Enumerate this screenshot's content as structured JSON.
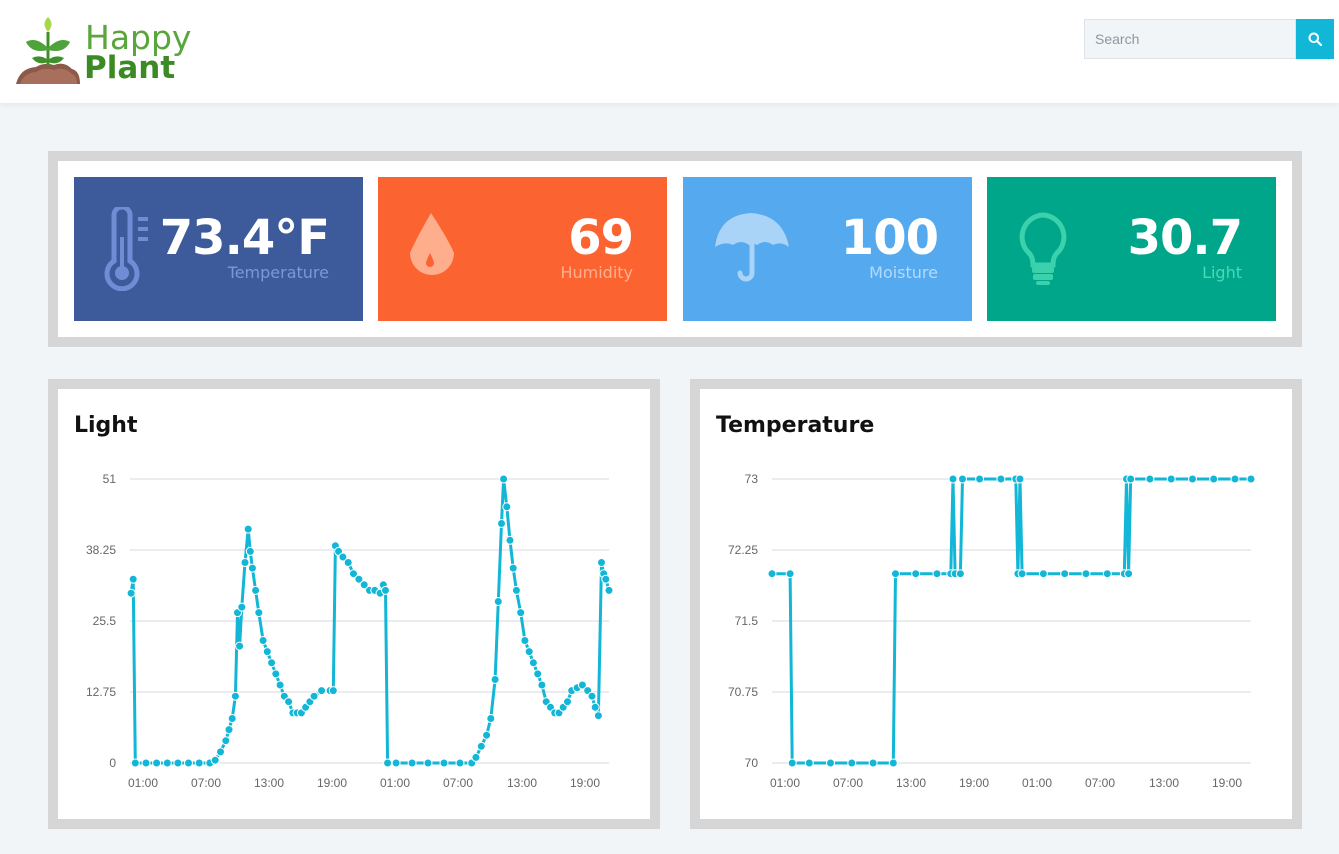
{
  "header": {
    "logo": {
      "line1": "Happy",
      "line2": "Plant"
    },
    "search": {
      "placeholder": "Search"
    }
  },
  "stats": [
    {
      "name": "temperature",
      "value": "73.4°F",
      "label": "Temperature",
      "color": "#3d5a9a",
      "label_color": "#7d97d6",
      "icon": "thermometer-icon"
    },
    {
      "name": "humidity",
      "value": "69",
      "label": "Humidity",
      "color": "#fb6431",
      "label_color": "#ffb08f",
      "icon": "water-drop-icon"
    },
    {
      "name": "moisture",
      "value": "100",
      "label": "Moisture",
      "color": "#55aaef",
      "label_color": "#b3dafa",
      "icon": "umbrella-icon"
    },
    {
      "name": "light",
      "value": "30.7",
      "label": "Light",
      "color": "#00a68a",
      "label_color": "#4cd8b8",
      "icon": "lightbulb-icon"
    }
  ],
  "chart_data": [
    {
      "type": "line",
      "title": "Light",
      "line_color": "#12b6d6",
      "y_ticks": [
        "51",
        "38.25",
        "25.5",
        "12.75",
        "0"
      ],
      "x_ticks": [
        "01:00",
        "07:00",
        "13:00",
        "19:00",
        "01:00",
        "07:00",
        "13:00",
        "19:00"
      ],
      "ylim": [
        0,
        51
      ],
      "xlim": [
        22.5,
        67.5
      ],
      "grid": true,
      "series": [
        {
          "points": [
            [
              22.6,
              30.5
            ],
            [
              22.8,
              33
            ],
            [
              23,
              0
            ],
            [
              24,
              0
            ],
            [
              25,
              0
            ],
            [
              26,
              0
            ],
            [
              27,
              0
            ],
            [
              28,
              0
            ],
            [
              29,
              0
            ],
            [
              30,
              0
            ],
            [
              30.5,
              0.5
            ],
            [
              31,
              2
            ],
            [
              31.5,
              4
            ],
            [
              31.8,
              6
            ],
            [
              32.1,
              8
            ],
            [
              32.4,
              12
            ],
            [
              32.6,
              27
            ],
            [
              32.8,
              21
            ],
            [
              33,
              28
            ],
            [
              33.3,
              36
            ],
            [
              33.6,
              42
            ],
            [
              33.8,
              38
            ],
            [
              34,
              35
            ],
            [
              34.3,
              31
            ],
            [
              34.6,
              27
            ],
            [
              35,
              22
            ],
            [
              35.4,
              20
            ],
            [
              35.8,
              18
            ],
            [
              36.2,
              16
            ],
            [
              36.6,
              14
            ],
            [
              37,
              12
            ],
            [
              37.4,
              11
            ],
            [
              37.8,
              9
            ],
            [
              38.2,
              9
            ],
            [
              38.6,
              9
            ],
            [
              39,
              10
            ],
            [
              39.4,
              11
            ],
            [
              39.8,
              12
            ],
            [
              40.5,
              13
            ],
            [
              41.3,
              13
            ],
            [
              41.6,
              13
            ],
            [
              41.8,
              39
            ],
            [
              42.1,
              38
            ],
            [
              42.5,
              37
            ],
            [
              43,
              36
            ],
            [
              43.5,
              34
            ],
            [
              44,
              33
            ],
            [
              44.5,
              32
            ],
            [
              45,
              31
            ],
            [
              45.5,
              31
            ],
            [
              46,
              30.5
            ],
            [
              46.3,
              32
            ],
            [
              46.5,
              31
            ],
            [
              46.7,
              0
            ],
            [
              47.5,
              0
            ],
            [
              49,
              0
            ],
            [
              50.5,
              0
            ],
            [
              52,
              0
            ],
            [
              53.5,
              0
            ],
            [
              54.6,
              0
            ],
            [
              55,
              1
            ],
            [
              55.5,
              3
            ],
            [
              56,
              5
            ],
            [
              56.4,
              8
            ],
            [
              56.8,
              15
            ],
            [
              57.1,
              29
            ],
            [
              57.4,
              43
            ],
            [
              57.6,
              51
            ],
            [
              57.9,
              46
            ],
            [
              58.2,
              40
            ],
            [
              58.5,
              35
            ],
            [
              58.8,
              31
            ],
            [
              59.2,
              27
            ],
            [
              59.6,
              22
            ],
            [
              60,
              20
            ],
            [
              60.4,
              18
            ],
            [
              60.8,
              16
            ],
            [
              61.2,
              14
            ],
            [
              61.6,
              11
            ],
            [
              62,
              10
            ],
            [
              62.4,
              9
            ],
            [
              62.8,
              9
            ],
            [
              63.2,
              10
            ],
            [
              63.6,
              11
            ],
            [
              64,
              13
            ],
            [
              64.5,
              13.5
            ],
            [
              65,
              14
            ],
            [
              65.5,
              13
            ],
            [
              65.9,
              12
            ],
            [
              66.2,
              10
            ],
            [
              66.5,
              8.5
            ],
            [
              66.8,
              36
            ],
            [
              67,
              34
            ],
            [
              67.2,
              33
            ],
            [
              67.5,
              31
            ]
          ]
        }
      ]
    },
    {
      "type": "line",
      "title": "Temperature",
      "line_color": "#12b6d6",
      "y_ticks": [
        "73",
        "72.25",
        "71.5",
        "70.75",
        "70"
      ],
      "x_ticks": [
        "01:00",
        "07:00",
        "13:00",
        "19:00",
        "01:00",
        "07:00",
        "13:00",
        "19:00"
      ],
      "ylim": [
        70,
        73
      ],
      "xlim": [
        22.5,
        67.5
      ],
      "grid": true,
      "series": [
        {
          "points": [
            [
              22.5,
              72
            ],
            [
              24.2,
              72
            ],
            [
              24.4,
              70
            ],
            [
              26,
              70
            ],
            [
              28,
              70
            ],
            [
              30,
              70
            ],
            [
              32,
              70
            ],
            [
              33.9,
              70
            ],
            [
              34.1,
              72
            ],
            [
              36,
              72
            ],
            [
              38,
              72
            ],
            [
              39.3,
              72
            ],
            [
              39.5,
              73
            ],
            [
              39.7,
              72
            ],
            [
              40.2,
              72
            ],
            [
              40.4,
              73
            ],
            [
              42,
              73
            ],
            [
              44,
              73
            ],
            [
              45.4,
              73
            ],
            [
              45.6,
              72
            ],
            [
              45.8,
              73
            ],
            [
              46,
              72
            ],
            [
              48,
              72
            ],
            [
              50,
              72
            ],
            [
              52,
              72
            ],
            [
              54,
              72
            ],
            [
              55.6,
              72
            ],
            [
              55.8,
              73
            ],
            [
              56,
              72
            ],
            [
              56.2,
              73
            ],
            [
              58,
              73
            ],
            [
              60,
              73
            ],
            [
              62,
              73
            ],
            [
              64,
              73
            ],
            [
              66,
              73
            ],
            [
              67.5,
              73
            ]
          ]
        }
      ]
    }
  ]
}
